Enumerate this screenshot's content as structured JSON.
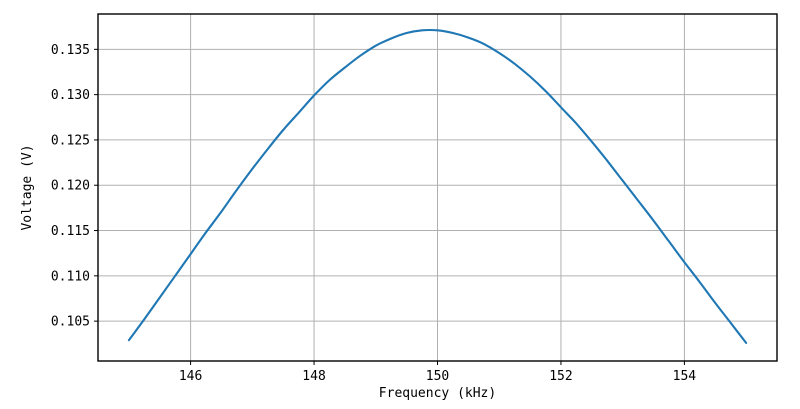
{
  "figure": {
    "background": "#ffffff"
  },
  "chart_data": {
    "type": "line",
    "title": "",
    "xlabel": "Frequency (kHz)",
    "ylabel": "Voltage (V)",
    "x": [
      145,
      145.25,
      145.5,
      145.75,
      146,
      146.25,
      146.5,
      146.75,
      147,
      147.25,
      147.5,
      147.75,
      148,
      148.25,
      148.5,
      148.75,
      149,
      149.25,
      149.5,
      149.75,
      150,
      150.25,
      150.5,
      150.75,
      151,
      151.25,
      151.5,
      151.75,
      152,
      152.25,
      152.5,
      152.75,
      153,
      153.25,
      153.5,
      153.75,
      154,
      154.25,
      154.5,
      154.75,
      155
    ],
    "y": [
      0.1029,
      0.1052,
      0.1076,
      0.11,
      0.1124,
      0.1148,
      0.1171,
      0.1195,
      0.1218,
      0.124,
      0.1261,
      0.128,
      0.1299,
      0.1316,
      0.133,
      0.1343,
      0.1354,
      0.1362,
      0.1368,
      0.1371,
      0.1371,
      0.1368,
      0.1363,
      0.1356,
      0.1346,
      0.1334,
      0.132,
      0.1304,
      0.1286,
      0.1268,
      0.1248,
      0.1227,
      0.1205,
      0.1183,
      0.1161,
      0.1138,
      0.1115,
      0.1093,
      0.107,
      0.1048,
      0.1026
    ],
    "peak": {
      "x": 149.9,
      "y": 0.1371
    },
    "xlim": [
      144.5,
      155.5
    ],
    "ylim": [
      0.1006,
      0.1389
    ],
    "xticks": {
      "values": [
        146,
        148,
        150,
        152,
        154
      ],
      "labels": [
        "146",
        "148",
        "150",
        "152",
        "154"
      ]
    },
    "yticks": {
      "values": [
        0.105,
        0.11,
        0.115,
        0.12,
        0.125,
        0.13,
        0.135
      ],
      "labels": [
        "0.105",
        "0.110",
        "0.115",
        "0.120",
        "0.125",
        "0.130",
        "0.135"
      ]
    },
    "grid": true,
    "legend": null,
    "colors": {
      "background": "#ffffff",
      "line": "#1f77b4",
      "grid": "#b0b0b0",
      "axis": "#000000",
      "text": "#000000"
    }
  }
}
